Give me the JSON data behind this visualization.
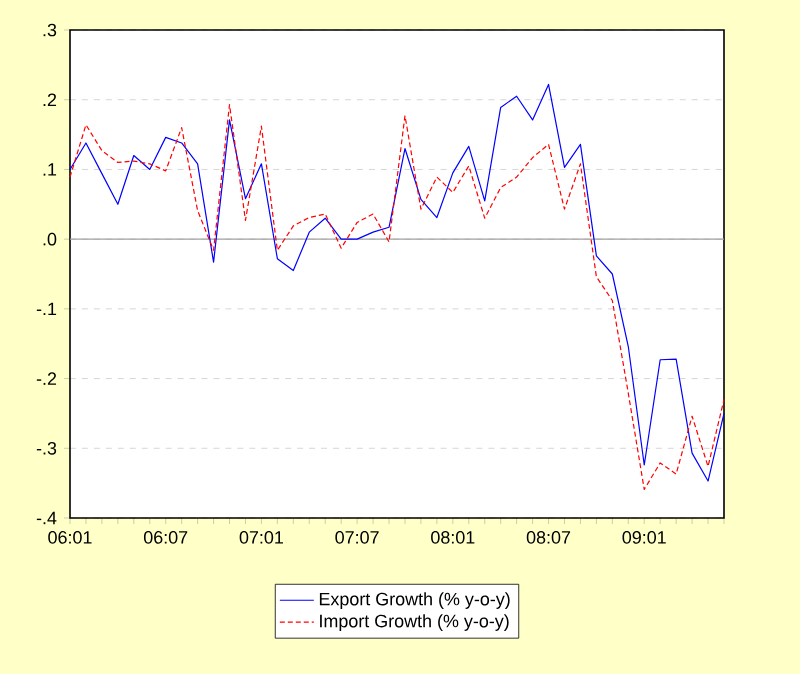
{
  "chart_data": {
    "type": "line",
    "categories": [
      "06:01",
      null,
      null,
      null,
      null,
      null,
      "06:07",
      null,
      null,
      null,
      null,
      null,
      "07:01",
      null,
      null,
      null,
      null,
      null,
      "07:07",
      null,
      null,
      null,
      null,
      null,
      "08:01",
      null,
      null,
      null,
      null,
      null,
      "08:07",
      null,
      null,
      null,
      null,
      null,
      "09:01",
      null,
      null,
      null,
      null,
      null
    ],
    "series": [
      {
        "name": "Export Growth (% y-o-y)",
        "color": "#0000ff",
        "line_style": "solid",
        "values": [
          0.1,
          0.138,
          0.094,
          0.05,
          0.12,
          0.1,
          0.146,
          0.138,
          0.108,
          -0.033,
          0.171,
          0.058,
          0.108,
          -0.028,
          -0.045,
          0.01,
          0.03,
          0.0,
          0.0,
          0.01,
          0.017,
          0.13,
          0.057,
          0.031,
          0.095,
          0.133,
          0.055,
          0.189,
          0.205,
          0.171,
          0.222,
          0.103,
          0.136,
          -0.024,
          -0.05,
          -0.154,
          -0.324,
          -0.173,
          -0.172,
          -0.307,
          -0.347,
          -0.25
        ]
      },
      {
        "name": "Import Growth (% y-o-y)",
        "color": "#ff0000",
        "line_style": "dashed",
        "values": [
          0.089,
          0.164,
          0.127,
          0.11,
          0.112,
          0.108,
          0.098,
          0.16,
          0.041,
          -0.016,
          0.193,
          0.027,
          0.162,
          -0.016,
          0.019,
          0.031,
          0.036,
          -0.013,
          0.024,
          0.036,
          -0.004,
          0.177,
          0.043,
          0.089,
          0.067,
          0.105,
          0.03,
          0.074,
          0.089,
          0.117,
          0.136,
          0.043,
          0.108,
          -0.054,
          -0.088,
          -0.221,
          -0.359,
          -0.321,
          -0.337,
          -0.254,
          -0.326,
          -0.23
        ]
      }
    ],
    "ylim": [
      -0.4,
      0.3
    ],
    "yticks": [
      {
        "value": -0.4,
        "label": "-.4"
      },
      {
        "value": -0.3,
        "label": "-.3"
      },
      {
        "value": -0.2,
        "label": "-.2"
      },
      {
        "value": -0.1,
        "label": "-.1"
      },
      {
        "value": 0.0,
        "label": ".0"
      },
      {
        "value": 0.1,
        "label": ".1"
      },
      {
        "value": 0.2,
        "label": ".2"
      },
      {
        "value": 0.3,
        "label": ".3"
      }
    ],
    "ref_lines": [
      {
        "axis": "y",
        "value": 0,
        "color": "#a0a0a0"
      }
    ],
    "grid": "y",
    "legend": "bottom",
    "marker": "none"
  }
}
